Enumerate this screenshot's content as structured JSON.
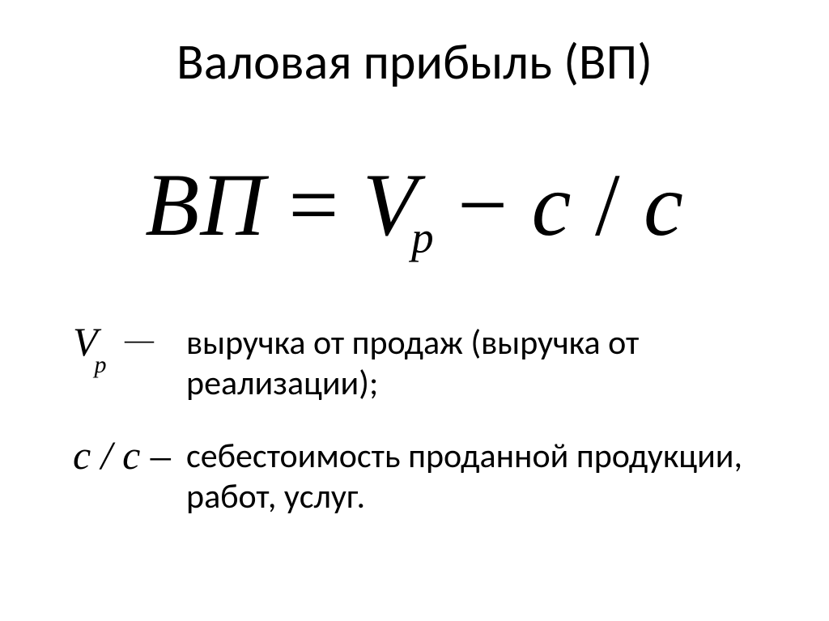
{
  "title": "Валовая прибыль (ВП)",
  "formula": {
    "lhs_italic": "ВП",
    "equals": " = ",
    "V": "V",
    "p_sub": "p",
    "minus": " − ",
    "c1": "c",
    "slash": " / ",
    "c2": "c"
  },
  "legend": [
    {
      "symbol_main": "V",
      "symbol_sub": "p",
      "symbol_dash": "—",
      "text": "выручка от продаж (выручка от реализации);"
    },
    {
      "symbol_full": "c / c –",
      "text": "себестоимость проданной продукции, работ, услуг."
    }
  ],
  "style": {
    "bg": "#ffffff",
    "text_color": "#000000",
    "title_fontsize": 62,
    "formula_fontsize": 110,
    "legend_symbol_fontsize": 50,
    "legend_text_fontsize": 42,
    "formula_font": "Times New Roman, serif",
    "body_font": "Calibri, Arial, sans-serif"
  }
}
